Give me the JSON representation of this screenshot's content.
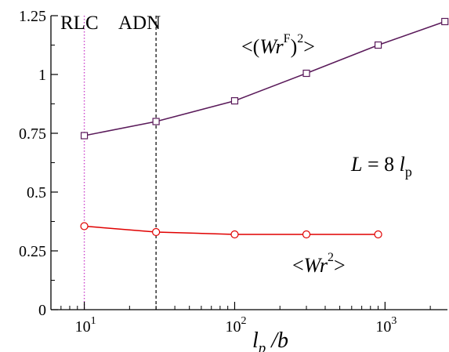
{
  "chart_data": {
    "type": "line",
    "xscale": "log",
    "xlim": [
      6,
      2600
    ],
    "ylim": [
      0,
      1.25
    ],
    "yticks": [
      {
        "value": 0,
        "label": "0"
      },
      {
        "value": 0.25,
        "label": "0.25"
      },
      {
        "value": 0.5,
        "label": "0.5"
      },
      {
        "value": 0.75,
        "label": "0.75"
      },
      {
        "value": 1,
        "label": "1"
      },
      {
        "value": 1.25,
        "label": "1.25"
      }
    ],
    "xticks": [
      {
        "value": 10,
        "base": "10",
        "exp": "1"
      },
      {
        "value": 100,
        "base": "10",
        "exp": "2"
      },
      {
        "value": 1000,
        "base": "10",
        "exp": "3"
      }
    ],
    "xlabel": {
      "main": "l",
      "sub": "p",
      "rest": " /b"
    },
    "series": [
      {
        "color": "#5a1a5a",
        "marker": "square",
        "x": [
          10,
          30,
          100,
          300,
          900,
          2500
        ],
        "y": [
          0.74,
          0.8,
          0.888,
          1.005,
          1.125,
          1.225
        ]
      },
      {
        "color": "#e00000",
        "marker": "circle",
        "x": [
          10,
          30,
          100,
          300,
          900
        ],
        "y": [
          0.355,
          0.33,
          0.32,
          0.32,
          0.32
        ]
      }
    ],
    "vlines": [
      {
        "x": 10,
        "color": "#cc44cc",
        "style": "dotted"
      },
      {
        "x": 30,
        "color": "#000000",
        "style": "dashed"
      }
    ],
    "annotations": {
      "rlc": "RLC",
      "adn": "ADN",
      "wrf_label": {
        "open": "<(",
        "wr": "Wr",
        "sup_f": "F",
        "close": ")",
        "sup_2": "2",
        "end": ">"
      },
      "wr_label": {
        "open": "<",
        "wr": "Wr",
        "sup_2": "2",
        "end": ">"
      },
      "length_label": {
        "l": "L",
        "eq": " = 8 ",
        "lp": "l",
        "sub": "p"
      }
    }
  }
}
